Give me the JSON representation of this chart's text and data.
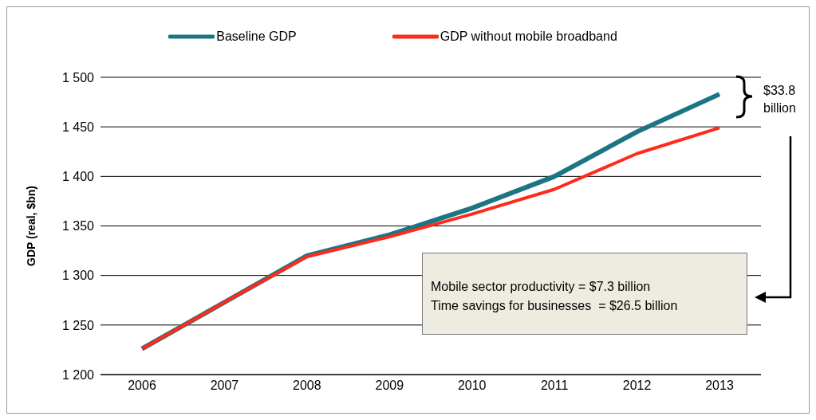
{
  "chart_data": {
    "type": "line",
    "ylabel": "GDP (real, $bn)",
    "categories": [
      "2006",
      "2007",
      "2008",
      "2009",
      "2010",
      "2011",
      "2012",
      "2013"
    ],
    "series": [
      {
        "name": "Baseline GDP",
        "color": "#1b7583",
        "values": [
          1226,
          1273,
          1320,
          1341,
          1368,
          1400,
          1445,
          1483
        ]
      },
      {
        "name": "GDP without mobile broadband",
        "color": "#ff2a1a",
        "values": [
          1226,
          1273,
          1319,
          1339,
          1362,
          1387,
          1423,
          1449
        ]
      }
    ],
    "ylim": [
      1200,
      1500
    ],
    "yticks": [
      {
        "value": 1200,
        "label": "1 200"
      },
      {
        "value": 1250,
        "label": "1 250"
      },
      {
        "value": 1300,
        "label": "1 300"
      },
      {
        "value": 1350,
        "label": "1 350"
      },
      {
        "value": 1400,
        "label": "1 400"
      },
      {
        "value": 1450,
        "label": "1 450"
      },
      {
        "value": 1500,
        "label": "1 500"
      }
    ],
    "grid": "y",
    "legend": "top",
    "marker": "none",
    "line_style": "solid",
    "annotations": [
      "$33.8 billion",
      "Mobile sector productivity = $7.3 billion",
      "Time savings for businesses  = $26.5 billion"
    ]
  }
}
